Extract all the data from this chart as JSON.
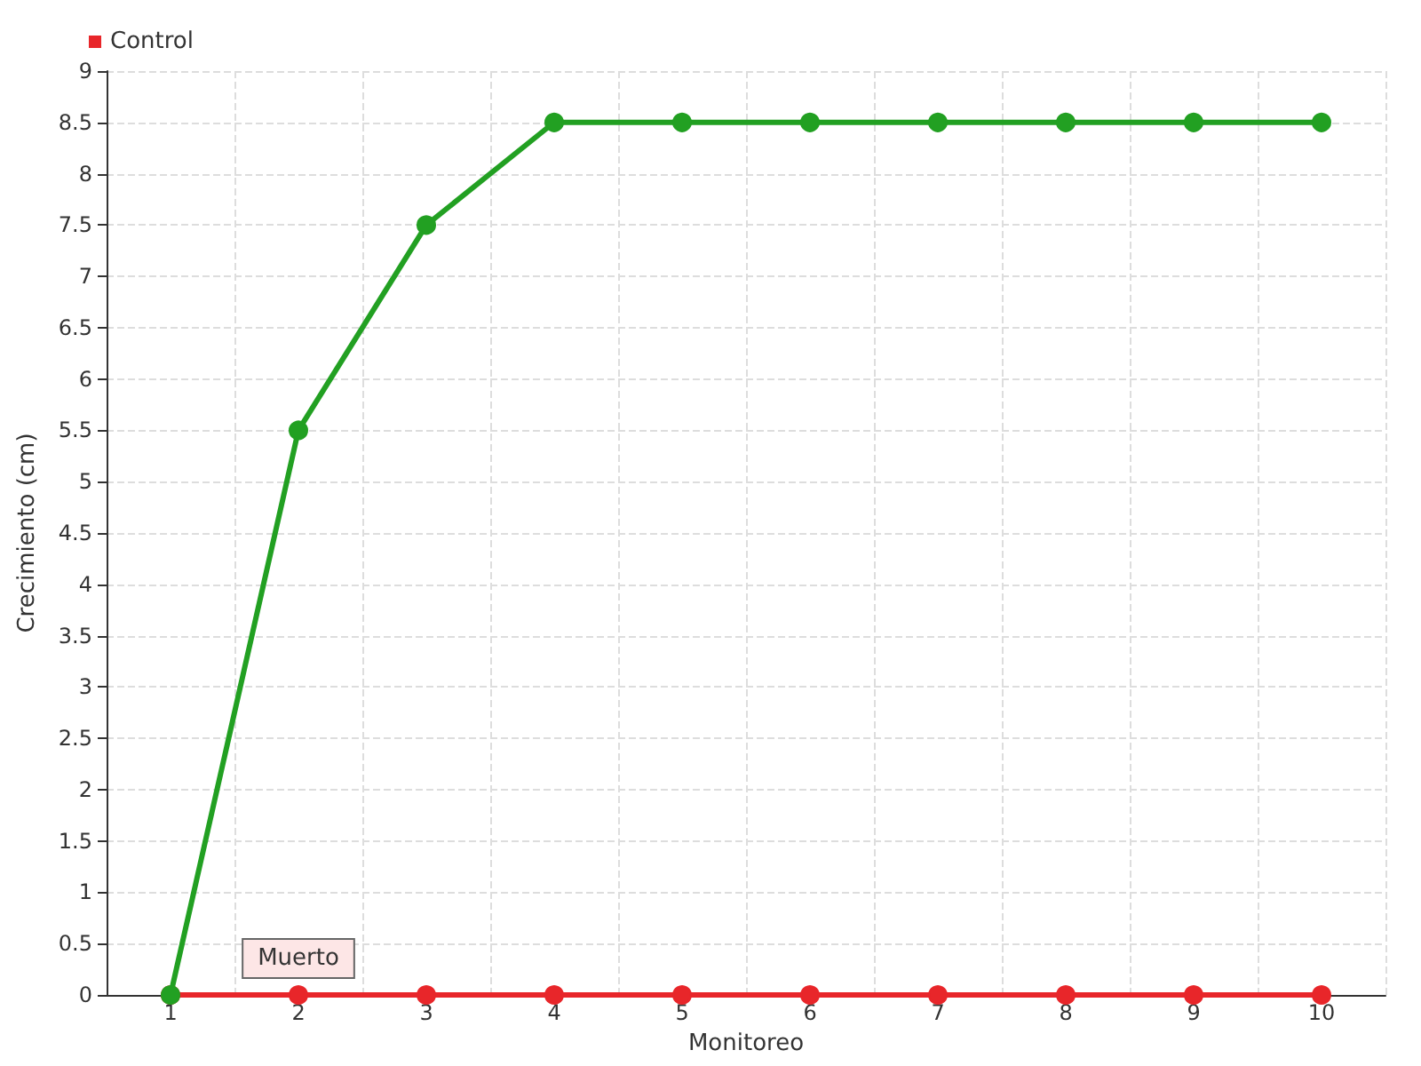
{
  "chart_data": {
    "type": "line",
    "xlabel": "Monitoreo",
    "ylabel": "Crecimiento (cm)",
    "categories": [
      "1",
      "2",
      "3",
      "4",
      "5",
      "6",
      "7",
      "8",
      "9",
      "10"
    ],
    "series": [
      {
        "color": "#22a022",
        "values": [
          0,
          5.5,
          7.5,
          8.5,
          8.5,
          8.5,
          8.5,
          8.5,
          8.5,
          8.5
        ]
      },
      {
        "name": "Control",
        "color": "#e8262a",
        "values": [
          0,
          0,
          0,
          0,
          0,
          0,
          0,
          0,
          0,
          0
        ]
      }
    ],
    "ylim": [
      0,
      9
    ],
    "yticks": [
      0,
      0.5,
      1,
      1.5,
      2,
      2.5,
      3,
      3.5,
      4,
      4.5,
      5,
      5.5,
      6,
      6.5,
      7,
      7.5,
      8,
      8.5,
      9
    ],
    "annotations": [
      {
        "text": "Muerto",
        "x": "2",
        "y": 0
      }
    ],
    "grid": true,
    "legend": "top left",
    "marker": "circle",
    "line_style": "solid"
  }
}
